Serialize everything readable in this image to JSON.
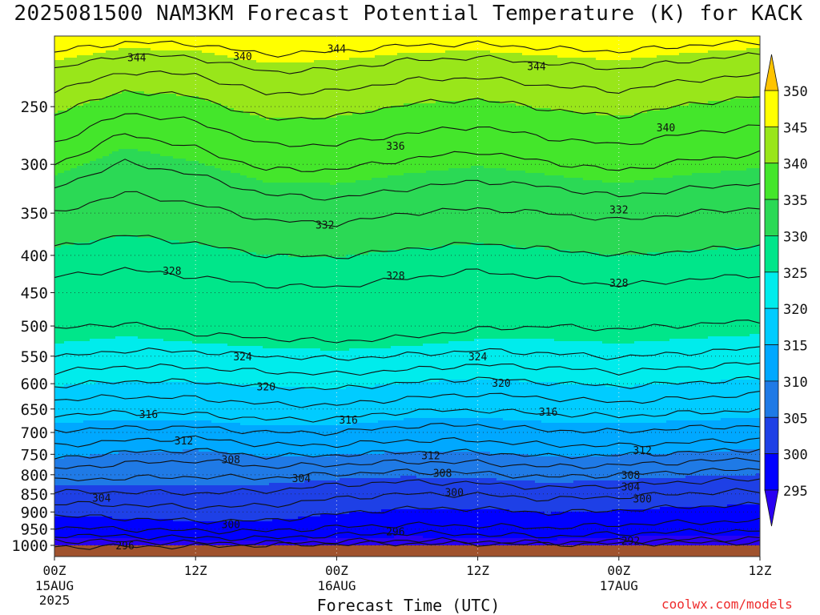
{
  "chart_title": "2025081500 NAM3KM Forecast Potential Temperature (K) for KACK",
  "xaxis_title": "Forecast Time (UTC)",
  "credit": "coolwx.com/models",
  "chart_data": {
    "type": "heatmap",
    "title": "2025081500 NAM3KM Forecast Potential Temperature (K) for KACK",
    "xlabel": "Forecast Time (UTC)",
    "ylabel": "",
    "x_ticks": [
      {
        "hour": 0,
        "label": "00Z",
        "sub": [
          "15AUG",
          "2025"
        ]
      },
      {
        "hour": 12,
        "label": "12Z",
        "sub": []
      },
      {
        "hour": 24,
        "label": "00Z",
        "sub": [
          "16AUG"
        ]
      },
      {
        "hour": 36,
        "label": "12Z",
        "sub": []
      },
      {
        "hour": 48,
        "label": "00Z",
        "sub": [
          "17AUG"
        ]
      },
      {
        "hour": 60,
        "label": "12Z",
        "sub": []
      }
    ],
    "xlim": [
      0,
      60
    ],
    "y_ticks": [
      250,
      300,
      350,
      400,
      450,
      500,
      550,
      600,
      650,
      700,
      750,
      800,
      850,
      900,
      950,
      1000
    ],
    "ylim": [
      1000,
      200
    ],
    "y_scale": "log",
    "colorbar": {
      "labels": [
        350,
        345,
        340,
        335,
        330,
        325,
        320,
        315,
        310,
        305,
        300,
        295
      ],
      "bands": [
        {
          "lo": 290,
          "hi": 295,
          "color": "#2a00f2"
        },
        {
          "lo": 295,
          "hi": 300,
          "color": "#0000ff"
        },
        {
          "lo": 300,
          "hi": 305,
          "color": "#1e40e6"
        },
        {
          "lo": 305,
          "hi": 310,
          "color": "#1f7ae6"
        },
        {
          "lo": 310,
          "hi": 315,
          "color": "#00a8ff"
        },
        {
          "lo": 315,
          "hi": 320,
          "color": "#00ccff"
        },
        {
          "lo": 320,
          "hi": 325,
          "color": "#00ecec"
        },
        {
          "lo": 325,
          "hi": 330,
          "color": "#00e68a"
        },
        {
          "lo": 330,
          "hi": 335,
          "color": "#2bd955"
        },
        {
          "lo": 335,
          "hi": 340,
          "color": "#44e62b"
        },
        {
          "lo": 340,
          "hi": 345,
          "color": "#99e61a"
        },
        {
          "lo": 345,
          "hi": 350,
          "color": "#ffff00"
        },
        {
          "lo": 350,
          "hi": 355,
          "color": "#ffc400"
        }
      ]
    },
    "contour_interval": 2,
    "contours": [
      {
        "level": 292,
        "p": [
          1005,
          1004,
          1003,
          1000,
          996,
          994,
          995,
          997,
          994,
          992,
          990
        ]
      },
      {
        "level": 294,
        "p": [
          985,
          988,
          992,
          993,
          988,
          984,
          988,
          992,
          986,
          982,
          978
        ]
      },
      {
        "level": 296,
        "p": [
          968,
          972,
          976,
          978,
          968,
          962,
          966,
          972,
          964,
          958,
          955
        ]
      },
      {
        "level": 298,
        "p": [
          945,
          950,
          955,
          956,
          944,
          937,
          940,
          946,
          937,
          930,
          926
        ]
      },
      {
        "level": 300,
        "p": [
          910,
          918,
          926,
          925,
          905,
          890,
          890,
          903,
          895,
          885,
          880
        ]
      },
      {
        "level": 302,
        "p": [
          876,
          880,
          886,
          882,
          862,
          850,
          852,
          864,
          858,
          848,
          842
        ]
      },
      {
        "level": 304,
        "p": [
          845,
          845,
          848,
          842,
          826,
          818,
          822,
          834,
          828,
          818,
          812
        ]
      },
      {
        "level": 306,
        "p": [
          815,
          808,
          805,
          808,
          798,
          792,
          796,
          806,
          800,
          792,
          786
        ]
      },
      {
        "level": 308,
        "p": [
          785,
          772,
          765,
          780,
          775,
          768,
          770,
          780,
          776,
          768,
          760
        ]
      },
      {
        "level": 310,
        "p": [
          760,
          745,
          740,
          755,
          752,
          744,
          745,
          755,
          752,
          745,
          738
        ]
      },
      {
        "level": 312,
        "p": [
          730,
          718,
          712,
          728,
          728,
          718,
          718,
          728,
          730,
          722,
          715
        ]
      },
      {
        "level": 314,
        "p": [
          695,
          690,
          688,
          700,
          700,
          686,
          684,
          695,
          698,
          690,
          685
        ]
      },
      {
        "level": 316,
        "p": [
          662,
          658,
          660,
          672,
          670,
          655,
          652,
          660,
          665,
          658,
          652
        ]
      },
      {
        "level": 318,
        "p": [
          632,
          625,
          628,
          640,
          642,
          628,
          620,
          628,
          636,
          628,
          620
        ]
      },
      {
        "level": 320,
        "p": [
          605,
          595,
          596,
          606,
          610,
          598,
          590,
          598,
          605,
          598,
          590
        ]
      },
      {
        "level": 322,
        "p": [
          578,
          568,
          570,
          578,
          582,
          574,
          565,
          570,
          578,
          570,
          562
        ]
      },
      {
        "level": 324,
        "p": [
          552,
          540,
          542,
          550,
          555,
          548,
          540,
          545,
          552,
          544,
          536
        ]
      },
      {
        "level": 326,
        "p": [
          505,
          495,
          512,
          520,
          525,
          518,
          505,
          500,
          505,
          498,
          492
        ]
      },
      {
        "level": 328,
        "p": [
          428,
          418,
          428,
          440,
          442,
          430,
          420,
          430,
          440,
          432,
          425
        ]
      },
      {
        "level": 330,
        "p": [
          390,
          375,
          385,
          400,
          402,
          392,
          385,
          392,
          400,
          394,
          388
        ]
      },
      {
        "level": 332,
        "p": [
          350,
          328,
          340,
          358,
          362,
          350,
          345,
          350,
          358,
          350,
          344
        ]
      },
      {
        "level": 334,
        "p": [
          322,
          298,
          310,
          330,
          334,
          324,
          316,
          322,
          332,
          324,
          318
        ]
      },
      {
        "level": 336,
        "p": [
          300,
          272,
          285,
          305,
          305,
          295,
          288,
          298,
          306,
          296,
          290
        ]
      },
      {
        "level": 338,
        "p": [
          280,
          255,
          262,
          282,
          282,
          272,
          266,
          276,
          282,
          272,
          266
        ]
      },
      {
        "level": 340,
        "p": [
          255,
          238,
          242,
          260,
          258,
          248,
          244,
          252,
          258,
          248,
          242
        ]
      },
      {
        "level": 342,
        "p": [
          238,
          224,
          226,
          240,
          238,
          230,
          228,
          234,
          238,
          230,
          226
        ]
      },
      {
        "level": 344,
        "p": [
          222,
          212,
          214,
          224,
          222,
          216,
          214,
          218,
          222,
          216,
          212
        ]
      },
      {
        "level": 346,
        "p": [
          210,
          204,
          205,
          212,
          210,
          206,
          205,
          208,
          210,
          206,
          204
        ]
      }
    ],
    "contour_labels": [
      {
        "text": "344",
        "hour": 7,
        "p": 214
      },
      {
        "text": "340",
        "hour": 16,
        "p": 213
      },
      {
        "text": "344",
        "hour": 24,
        "p": 208
      },
      {
        "text": "344",
        "hour": 41,
        "p": 220
      },
      {
        "text": "336",
        "hour": 29,
        "p": 283
      },
      {
        "text": "340",
        "hour": 52,
        "p": 267
      },
      {
        "text": "332",
        "hour": 23,
        "p": 363
      },
      {
        "text": "332",
        "hour": 48,
        "p": 346
      },
      {
        "text": "328",
        "hour": 10,
        "p": 420
      },
      {
        "text": "328",
        "hour": 29,
        "p": 426
      },
      {
        "text": "328",
        "hour": 48,
        "p": 436
      },
      {
        "text": "324",
        "hour": 16,
        "p": 550
      },
      {
        "text": "324",
        "hour": 36,
        "p": 550
      },
      {
        "text": "320",
        "hour": 18,
        "p": 605
      },
      {
        "text": "320",
        "hour": 38,
        "p": 598
      },
      {
        "text": "316",
        "hour": 8,
        "p": 660
      },
      {
        "text": "316",
        "hour": 25,
        "p": 672
      },
      {
        "text": "316",
        "hour": 42,
        "p": 655
      },
      {
        "text": "312",
        "hour": 11,
        "p": 718
      },
      {
        "text": "312",
        "hour": 32,
        "p": 752
      },
      {
        "text": "312",
        "hour": 50,
        "p": 740
      },
      {
        "text": "308",
        "hour": 15,
        "p": 762
      },
      {
        "text": "308",
        "hour": 33,
        "p": 795
      },
      {
        "text": "308",
        "hour": 49,
        "p": 800
      },
      {
        "text": "304",
        "hour": 21,
        "p": 808
      },
      {
        "text": "304",
        "hour": 4,
        "p": 860
      },
      {
        "text": "304",
        "hour": 49,
        "p": 830
      },
      {
        "text": "300",
        "hour": 15,
        "p": 935
      },
      {
        "text": "300",
        "hour": 34,
        "p": 845
      },
      {
        "text": "300",
        "hour": 50,
        "p": 862
      },
      {
        "text": "296",
        "hour": 29,
        "p": 957
      },
      {
        "text": "296",
        "hour": 6,
        "p": 1000
      },
      {
        "text": "292",
        "hour": 49,
        "p": 985
      }
    ],
    "ground_color": "#a0522d"
  }
}
